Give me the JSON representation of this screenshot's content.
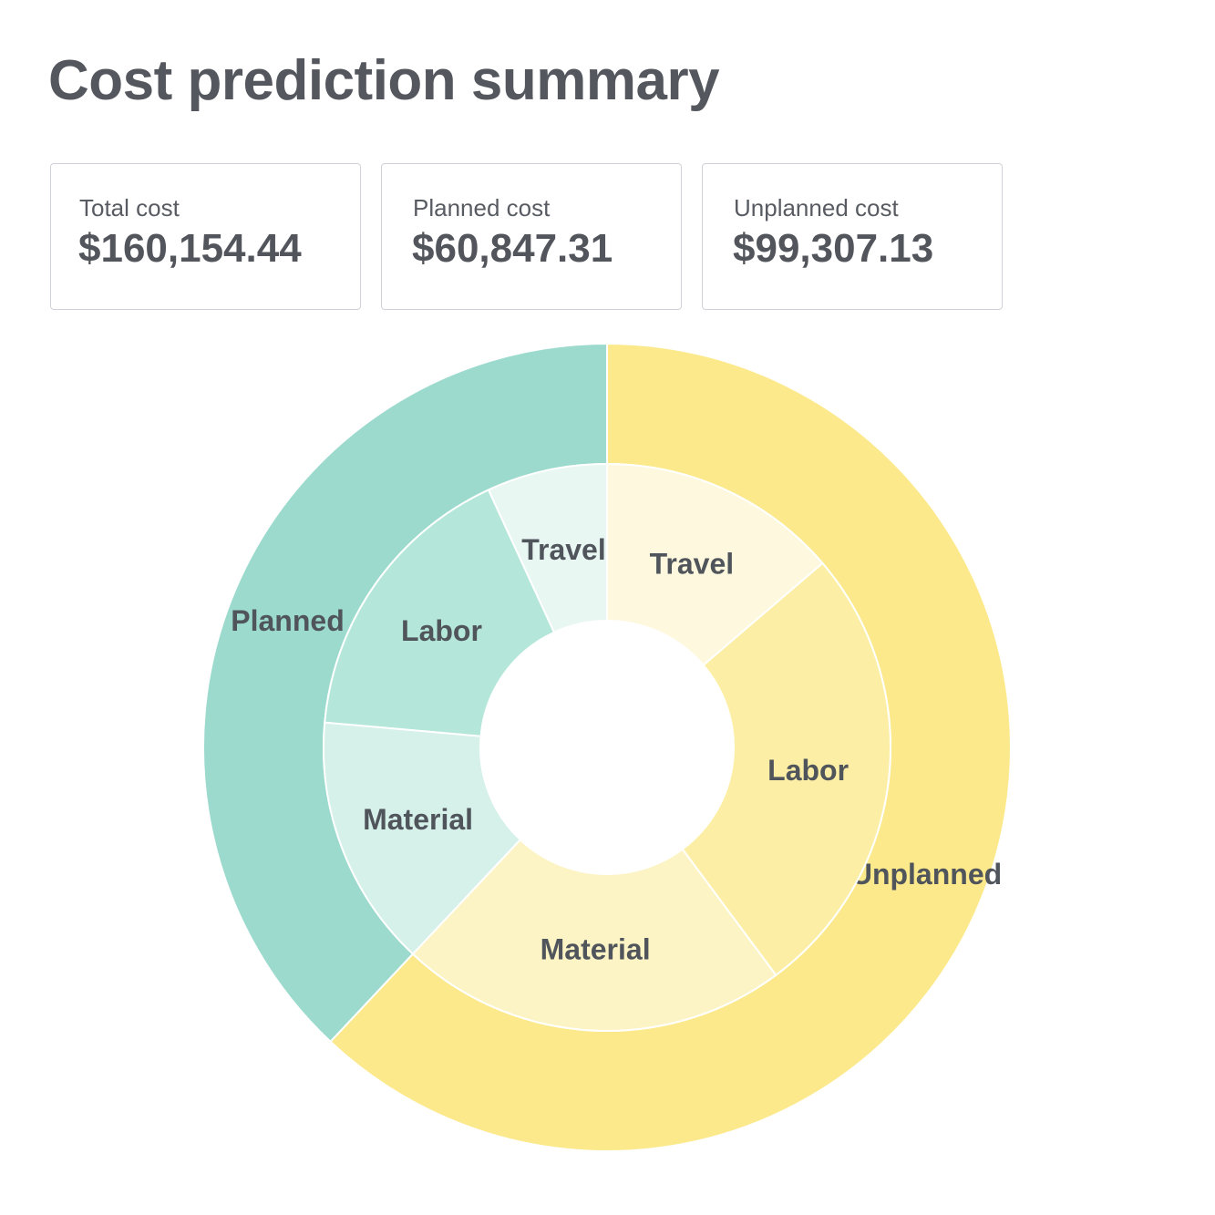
{
  "header": {
    "title": "Cost prediction summary"
  },
  "summary_cards": [
    {
      "label": "Total cost",
      "value": "$160,154.44"
    },
    {
      "label": "Planned cost",
      "value": "$60,847.31"
    },
    {
      "label": "Unplanned cost",
      "value": "$99,307.13"
    }
  ],
  "chart_data": {
    "type": "pie",
    "subtype": "sunburst",
    "start_angle_deg": 90,
    "rings": [
      {
        "level": "outer",
        "slices": [
          {
            "label": "Planned",
            "value": 60847.31,
            "color": "#9bdacd"
          },
          {
            "label": "Unplanned",
            "value": 99307.13,
            "color": "#fce98b"
          }
        ]
      },
      {
        "level": "inner",
        "slices": [
          {
            "parent": "Planned",
            "label": "Travel",
            "value": 11000,
            "color": "#e9f7f3"
          },
          {
            "parent": "Planned",
            "label": "Labor",
            "value": 26800,
            "color": "#b4e6da"
          },
          {
            "parent": "Planned",
            "label": "Material",
            "value": 23047.31,
            "color": "#d6f0ea"
          },
          {
            "parent": "Unplanned",
            "label": "Material",
            "value": 35500,
            "color": "#fdf4c5"
          },
          {
            "parent": "Unplanned",
            "label": "Labor",
            "value": 41800,
            "color": "#fcefa5"
          },
          {
            "parent": "Unplanned",
            "label": "Travel",
            "value": 22007.13,
            "color": "#fef8de"
          }
        ]
      }
    ]
  }
}
